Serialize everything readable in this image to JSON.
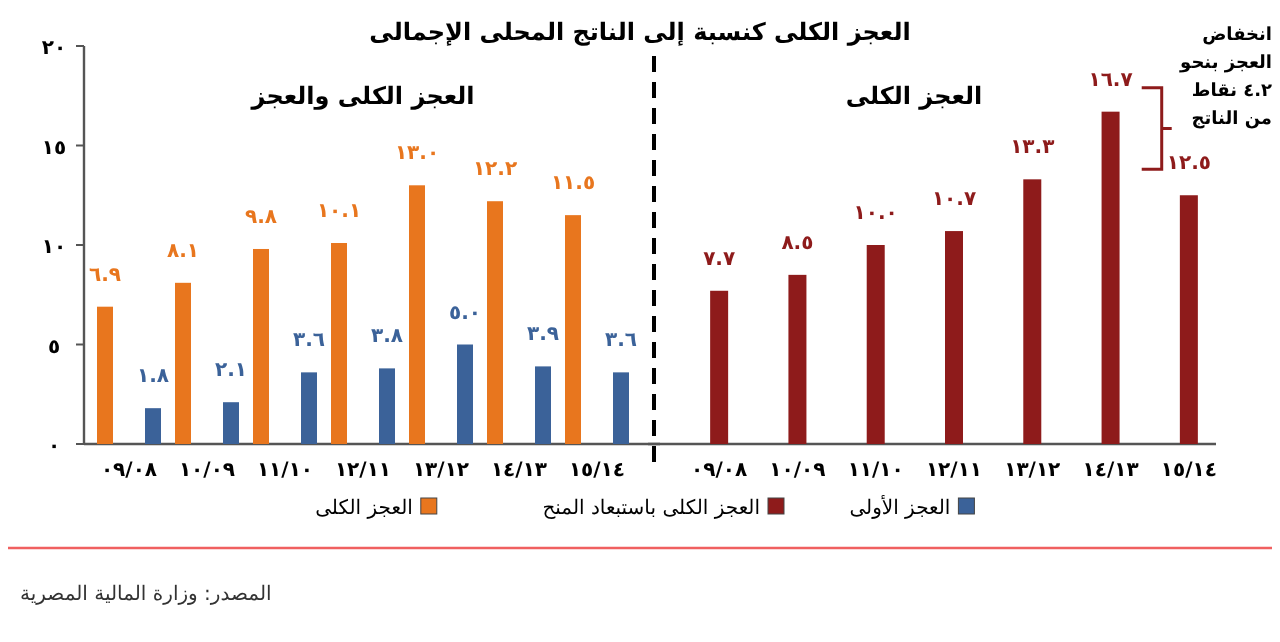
{
  "chart_data": [
    {
      "type": "bar",
      "title": "العجز الكلى كنسبة إلى الناتج المحلى الإجمالى",
      "subtitle": "العجز الكلى والعجز",
      "categories": [
        "٠٩/٠٨",
        "١٠/٠٩",
        "١١/١٠",
        "١٢/١١",
        "١٣/١٢",
        "١٤/١٣",
        "١٥/١٤"
      ],
      "series": [
        {
          "name": "العجز الأولى",
          "color": "#3b6299",
          "values": [
            1.8,
            2.1,
            3.6,
            3.8,
            5.0,
            3.9,
            3.6
          ],
          "value_labels": [
            "١.٨",
            "٢.١",
            "٣.٦",
            "٣.٨",
            "٥.٠",
            "٣.٩",
            "٣.٦"
          ]
        },
        {
          "name": "العجز الكلى",
          "color": "#e8761e",
          "values": [
            6.9,
            8.1,
            9.8,
            10.1,
            13.0,
            12.2,
            11.5
          ],
          "value_labels": [
            "٦.٩",
            "٨.١",
            "٩.٨",
            "١٠.١",
            "١٣.٠",
            "١٢.٢",
            "١١.٥"
          ]
        }
      ],
      "ylim": [
        0,
        20
      ],
      "yticks": [
        {
          "value": 0,
          "label": "٠"
        },
        {
          "value": 5,
          "label": "٥"
        },
        {
          "value": 10,
          "label": "١٠"
        },
        {
          "value": 15,
          "label": "١٥"
        },
        {
          "value": 20,
          "label": "٢٠"
        }
      ],
      "legend": "bottom",
      "annotations": [
        "المصدر: وزارة المالية المصرية"
      ]
    },
    {
      "type": "bar",
      "subtitle": "العجز الكلى",
      "categories": [
        "٠٩/٠٨",
        "١٠/٠٩",
        "١١/١٠",
        "١٢/١١",
        "١٣/١٢",
        "١٤/١٣",
        "١٥/١٤"
      ],
      "series": [
        {
          "name": "العجز الكلى باستبعاد المنح",
          "color": "#8e1b1b",
          "values": [
            7.7,
            8.5,
            10.0,
            10.7,
            13.3,
            16.7,
            12.5
          ],
          "value_labels": [
            "٧.٧",
            "٨.٥",
            "١٠.٠",
            "١٠.٧",
            "١٣.٣",
            "١٦.٧",
            "١٢.٥"
          ]
        }
      ],
      "ylim": [
        0,
        20
      ],
      "tick_labels": "x",
      "legend": "bottom",
      "annotations": [
        "انخفاض العجز بنحو ٤.٢ نقاط من الناتج"
      ]
    }
  ]
}
